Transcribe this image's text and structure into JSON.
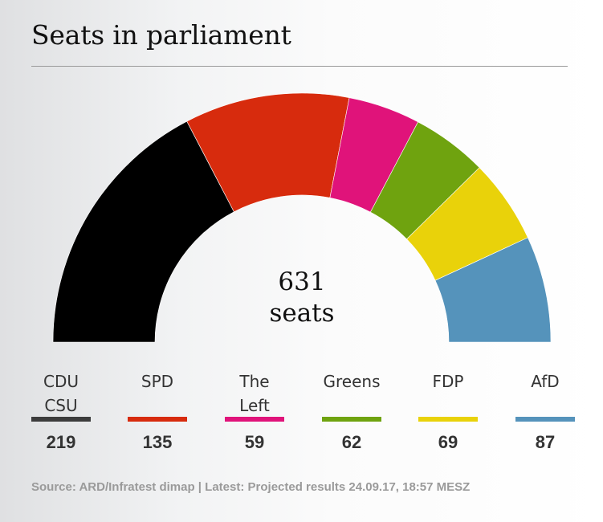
{
  "chart_data": {
    "type": "pie",
    "variant": "semicircle",
    "title": "Seats in parliament",
    "total_label": {
      "number": "631",
      "unit": "seats"
    },
    "total": 631,
    "parties": [
      {
        "name": "CDU\nCSU",
        "seats": 219,
        "color": "#000000",
        "swatch_color": "#3c3c3c"
      },
      {
        "name": "SPD",
        "seats": 135,
        "color": "#d72b0d",
        "swatch_color": "#d72b0d"
      },
      {
        "name": "The Left",
        "seats": 59,
        "color": "#e0137a",
        "swatch_color": "#e0137a"
      },
      {
        "name": "Greens",
        "seats": 62,
        "color": "#6fa30f",
        "swatch_color": "#6fa30f"
      },
      {
        "name": "FDP",
        "seats": 69,
        "color": "#e9d20a",
        "swatch_color": "#e9d20a"
      },
      {
        "name": "AfD",
        "seats": 87,
        "color": "#5593bb",
        "swatch_color": "#5593bb"
      }
    ]
  },
  "source": "Source: ARD/Infratest dimap | Latest: Projected results 24.09.17, 18:57 MESZ"
}
